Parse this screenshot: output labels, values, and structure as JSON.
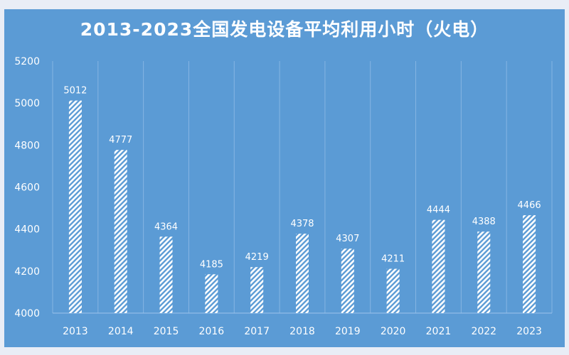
{
  "chart_data": {
    "type": "bar",
    "title": "2013-2023全国发电设备平均利用小时（火电）",
    "categories": [
      "2013",
      "2014",
      "2015",
      "2016",
      "2017",
      "2018",
      "2019",
      "2020",
      "2021",
      "2022",
      "2023"
    ],
    "values": [
      5012,
      4777,
      4364,
      4185,
      4219,
      4378,
      4307,
      4211,
      4444,
      4388,
      4466
    ],
    "ylim": [
      4000,
      5200
    ],
    "yticks": [
      4000,
      4200,
      4400,
      4600,
      4800,
      5000,
      5200
    ],
    "xlabel": "",
    "ylabel": "",
    "grid": "vertical category separators",
    "legend": "none",
    "colors": {
      "background": "#5b9bd5",
      "bar": "hatched white",
      "text": "#ffffff"
    }
  }
}
